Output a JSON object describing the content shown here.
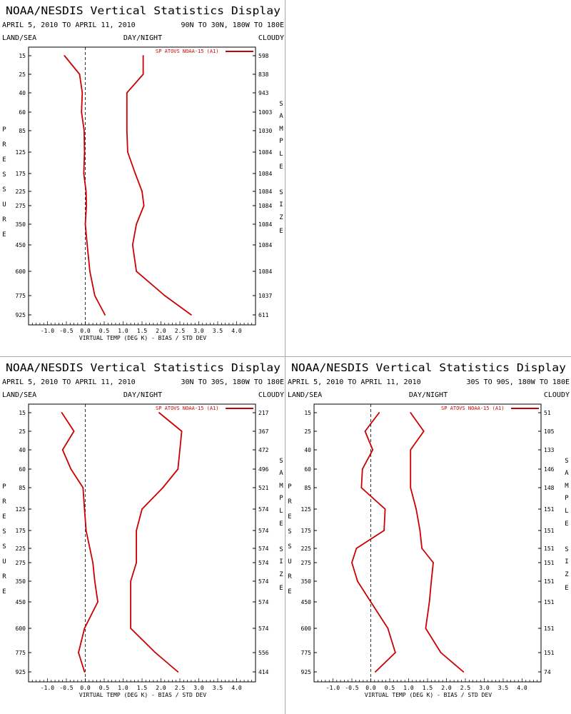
{
  "panels": [
    {
      "title": "NOAA/NESDIS Vertical Statistics Display",
      "dates": "APRIL 5, 2010 TO APRIL 11, 2010",
      "region": "90N TO 30N, 180W TO 180E",
      "left_header": "LAND/SEA",
      "center_header": "DAY/NIGHT",
      "right_header": "CLOUDY",
      "y_label": "PRESSURE",
      "right_axis_label": "SAMPLE SIZE",
      "x_label": "VIRTUAL TEMP (DEG K) - BIAS / STD DEV",
      "legend": "SP ATOVS NOAA-15 (A1)"
    },
    {
      "title": "NOAA/NESDIS Vertical Statistics Display",
      "dates": "APRIL 5, 2010 TO APRIL 11, 2010",
      "region": "30N TO 30S, 180W TO 180E",
      "left_header": "LAND/SEA",
      "center_header": "DAY/NIGHT",
      "right_header": "CLOUDY",
      "y_label": "PRESSURE",
      "right_axis_label": "SAMPLE SIZE",
      "x_label": "VIRTUAL TEMP (DEG K) - BIAS / STD DEV",
      "legend": "SP ATOVS NOAA-15 (A1)"
    },
    {
      "title": "NOAA/NESDIS Vertical Statistics Display",
      "dates": "APRIL 5, 2010 TO APRIL 11, 2010",
      "region": "30S TO 90S, 180W TO 180E",
      "left_header": "LAND/SEA",
      "center_header": "DAY/NIGHT",
      "right_header": "CLOUDY",
      "y_label": "PRESSURE",
      "right_axis_label": "SAMPLE SIZE",
      "x_label": "VIRTUAL TEMP (DEG K) - BIAS / STD DEV",
      "legend": "SP ATOVS NOAA-15 (A1)"
    }
  ],
  "chart_data": [
    {
      "type": "line",
      "pressure_levels": [
        "15",
        "25",
        "40",
        "60",
        "85",
        "125",
        "175",
        "225",
        "275",
        "350",
        "450",
        "600",
        "775",
        "925"
      ],
      "xlim": [
        -1.5,
        4.5
      ],
      "x_ticks": [
        "-1.0",
        "-0.5",
        "0.0",
        "0.5",
        "1.0",
        "1.5",
        "2.0",
        "2.5",
        "3.0",
        "3.5",
        "4.0"
      ],
      "series": [
        {
          "name": "SP ATOVS NOAA-15 (A1)",
          "role": "bias",
          "values": [
            -0.55,
            -0.15,
            -0.08,
            -0.1,
            -0.03,
            -0.02,
            -0.04,
            0.02,
            0.03,
            0.0,
            0.05,
            0.12,
            0.25,
            0.52
          ]
        },
        {
          "name": "SP ATOVS NOAA-15 (A1)",
          "role": "std_dev",
          "values": [
            1.53,
            1.53,
            1.1,
            1.1,
            1.1,
            1.12,
            1.32,
            1.5,
            1.55,
            1.35,
            1.25,
            1.35,
            2.1,
            2.8
          ]
        }
      ],
      "sample_size": [
        "598",
        "838",
        "943",
        "1003",
        "1030",
        "1084",
        "1084",
        "1084",
        "1084",
        "1084",
        "1084",
        "1084",
        "1037",
        "611"
      ],
      "color": "#cc0000"
    },
    {
      "type": "line",
      "pressure_levels": [
        "15",
        "25",
        "40",
        "60",
        "85",
        "125",
        "175",
        "225",
        "275",
        "350",
        "450",
        "600",
        "775",
        "925"
      ],
      "xlim": [
        -1.5,
        4.5
      ],
      "x_ticks": [
        "-1.0",
        "-0.5",
        "0.0",
        "0.5",
        "1.0",
        "1.5",
        "2.0",
        "2.5",
        "3.0",
        "3.5",
        "4.0"
      ],
      "series": [
        {
          "name": "SP ATOVS NOAA-15 (A1)",
          "role": "bias",
          "values": [
            -0.62,
            -0.3,
            -0.6,
            -0.38,
            -0.06,
            -0.02,
            0.02,
            0.12,
            0.2,
            0.25,
            0.33,
            -0.02,
            -0.18,
            -0.02
          ]
        },
        {
          "name": "SP ATOVS NOAA-15 (A1)",
          "role": "std_dev",
          "values": [
            1.95,
            2.55,
            2.5,
            2.45,
            2.05,
            1.5,
            1.35,
            1.35,
            1.35,
            1.2,
            1.2,
            1.2,
            1.85,
            2.45
          ]
        }
      ],
      "sample_size": [
        "217",
        "367",
        "472",
        "496",
        "521",
        "574",
        "574",
        "574",
        "574",
        "574",
        "574",
        "574",
        "556",
        "414"
      ],
      "color": "#cc0000"
    },
    {
      "type": "line",
      "pressure_levels": [
        "15",
        "25",
        "40",
        "60",
        "85",
        "125",
        "175",
        "225",
        "275",
        "350",
        "450",
        "600",
        "775",
        "925"
      ],
      "xlim": [
        -1.5,
        4.5
      ],
      "x_ticks": [
        "-1.0",
        "-0.5",
        "0.0",
        "0.5",
        "1.0",
        "1.5",
        "2.0",
        "2.5",
        "3.0",
        "3.5",
        "4.0"
      ],
      "series": [
        {
          "name": "SP ATOVS NOAA-15 (A1)",
          "role": "bias",
          "values": [
            0.22,
            -0.15,
            0.05,
            -0.22,
            -0.25,
            0.38,
            0.35,
            -0.38,
            -0.5,
            -0.35,
            0.0,
            0.45,
            0.65,
            0.12
          ]
        },
        {
          "name": "SP ATOVS NOAA-15 (A1)",
          "role": "std_dev",
          "values": [
            1.05,
            1.4,
            1.05,
            1.05,
            1.05,
            1.2,
            1.3,
            1.35,
            1.65,
            1.6,
            1.55,
            1.45,
            1.85,
            2.45
          ]
        }
      ],
      "sample_size": [
        "51",
        "105",
        "133",
        "146",
        "148",
        "151",
        "151",
        "151",
        "151",
        "151",
        "151",
        "151",
        "151",
        "74"
      ],
      "color": "#cc0000"
    }
  ]
}
